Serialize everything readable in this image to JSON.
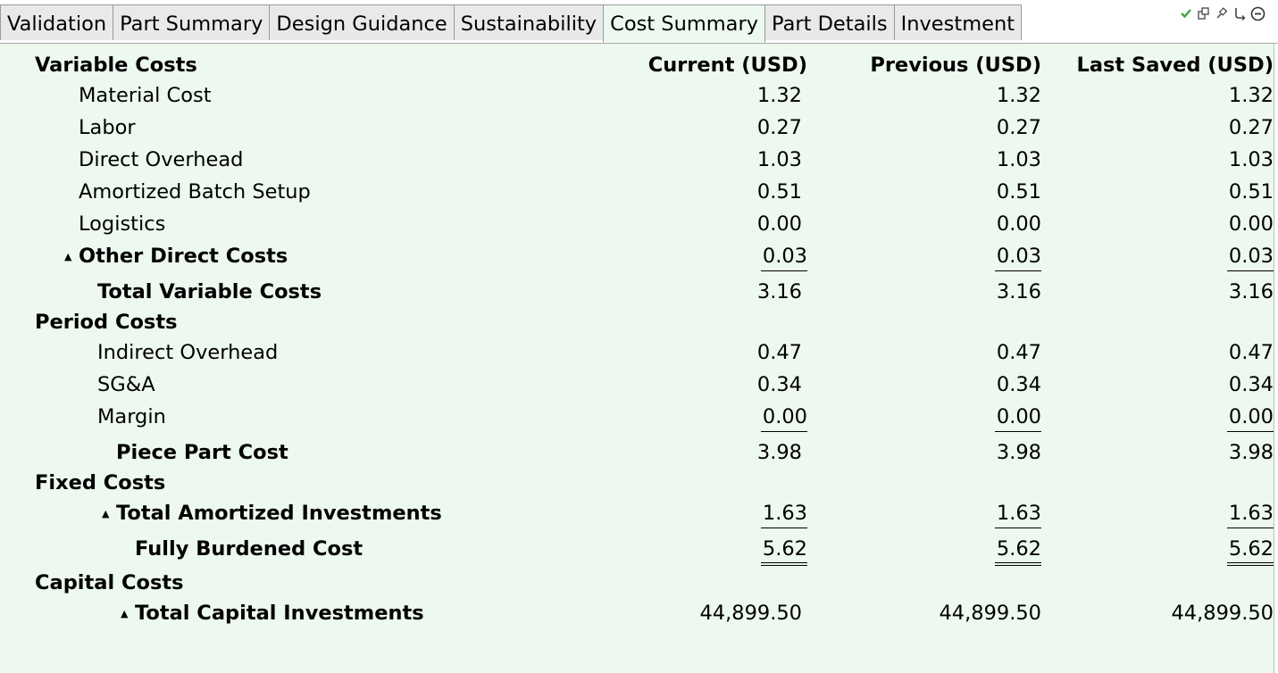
{
  "tabs": [
    {
      "label": "Validation",
      "active": false
    },
    {
      "label": "Part Summary",
      "active": false
    },
    {
      "label": "Design Guidance",
      "active": false
    },
    {
      "label": "Sustainability",
      "active": false
    },
    {
      "label": "Cost Summary",
      "active": true
    },
    {
      "label": "Part Details",
      "active": false
    },
    {
      "label": "Investment",
      "active": false
    }
  ],
  "toolbar_icons": [
    "check-icon",
    "detach-icon",
    "pin-icon",
    "link-icon",
    "clock-icon"
  ],
  "colors": {
    "background": "#edf8ef",
    "check": "#3aa83a"
  },
  "headers": {
    "section": "Variable Costs",
    "current": "Current (USD)",
    "previous": "Previous (USD)",
    "last_saved": "Last Saved (USD)"
  },
  "rows": [
    {
      "label": "Material Cost",
      "current": "1.32",
      "previous": "1.32",
      "last_saved": "1.32"
    },
    {
      "label": "Labor",
      "current": "0.27",
      "previous": "0.27",
      "last_saved": "0.27"
    },
    {
      "label": "Direct Overhead",
      "current": "1.03",
      "previous": "1.03",
      "last_saved": "1.03"
    },
    {
      "label": "Amortized Batch Setup",
      "current": "0.51",
      "previous": "0.51",
      "last_saved": "0.51"
    },
    {
      "label": "Logistics",
      "current": "0.00",
      "previous": "0.00",
      "last_saved": "0.00"
    },
    {
      "label": "Other Direct Costs",
      "current": "0.03",
      "previous": "0.03",
      "last_saved": "0.03"
    },
    {
      "label": "Total Variable Costs",
      "current": "3.16",
      "previous": "3.16",
      "last_saved": "3.16"
    },
    {
      "label": "Period Costs"
    },
    {
      "label": "Indirect Overhead",
      "current": "0.47",
      "previous": "0.47",
      "last_saved": "0.47"
    },
    {
      "label": "SG&A",
      "current": "0.34",
      "previous": "0.34",
      "last_saved": "0.34"
    },
    {
      "label": "Margin",
      "current": "0.00",
      "previous": "0.00",
      "last_saved": "0.00"
    },
    {
      "label": "Piece Part Cost",
      "current": "3.98",
      "previous": "3.98",
      "last_saved": "3.98"
    },
    {
      "label": "Fixed Costs"
    },
    {
      "label": "Total Amortized Investments",
      "current": "1.63",
      "previous": "1.63",
      "last_saved": "1.63"
    },
    {
      "label": "Fully Burdened Cost",
      "current": "5.62",
      "previous": "5.62",
      "last_saved": "5.62"
    },
    {
      "label": "Capital Costs"
    },
    {
      "label": "Total Capital Investments",
      "current": "44,899.50",
      "previous": "44,899.50",
      "last_saved": "44,899.50"
    }
  ]
}
